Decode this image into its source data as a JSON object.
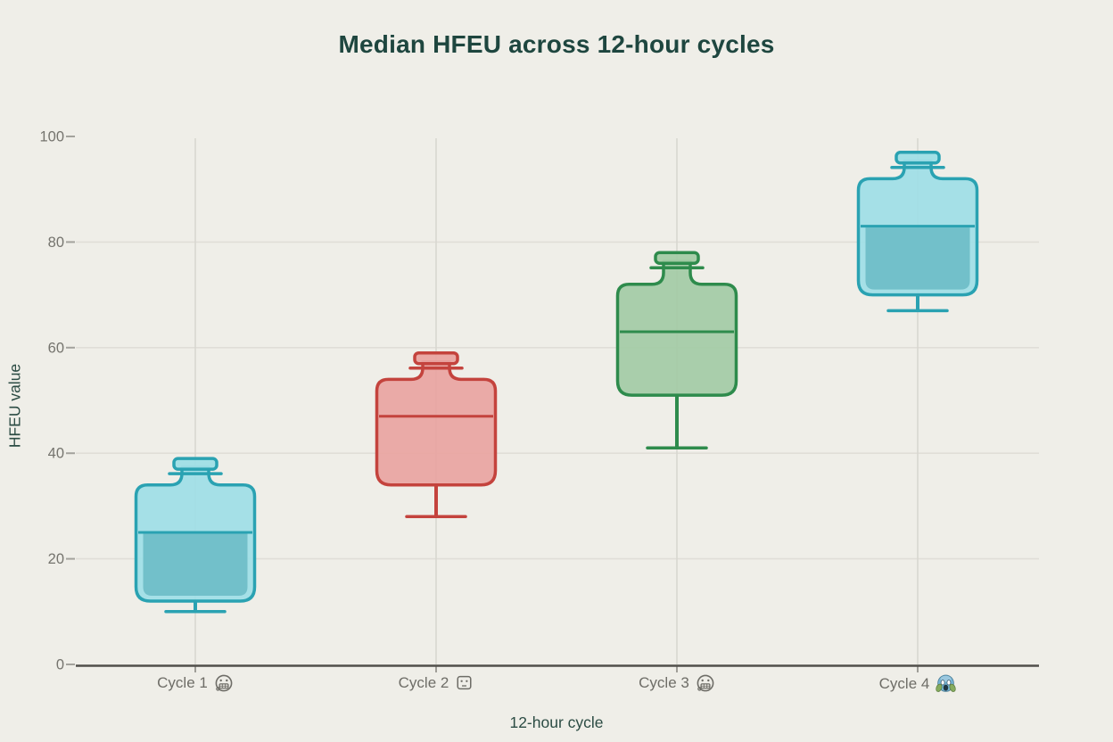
{
  "page": {
    "background": "#efeee8"
  },
  "chart_data": {
    "type": "boxplot",
    "title": "Median HFEU across 12-hour cycles",
    "xlabel": "12-hour cycle",
    "ylabel": "HFEU value",
    "ylim": [
      0,
      100
    ],
    "yticks": [
      0,
      20,
      40,
      60,
      80,
      100
    ],
    "grid": true,
    "legend": false,
    "categories": [
      {
        "label": "Cycle 1",
        "emoji": "😬",
        "icon": "face-grimace-icon"
      },
      {
        "label": "Cycle 2",
        "emoji": "🤖",
        "icon": "face-square-icon"
      },
      {
        "label": "Cycle 3",
        "emoji": "😬",
        "icon": "face-grimace-icon"
      },
      {
        "label": "Cycle 4",
        "emoji": "😱",
        "icon": "face-scream-icon"
      }
    ],
    "series": [
      {
        "name": "Cycle 1",
        "whisker_low": 10,
        "q1": 12,
        "median": 25,
        "q3": 34,
        "whisker_high": 39,
        "color_key": "teal"
      },
      {
        "name": "Cycle 2",
        "whisker_low": 28,
        "q1": 34,
        "median": 47,
        "q3": 54,
        "whisker_high": 59,
        "color_key": "red"
      },
      {
        "name": "Cycle 3",
        "whisker_low": 41,
        "q1": 51,
        "median": 63,
        "q3": 72,
        "whisker_high": 78,
        "color_key": "green"
      },
      {
        "name": "Cycle 4",
        "whisker_low": 67,
        "q1": 70,
        "median": 83,
        "q3": 92,
        "whisker_high": 97,
        "color_key": "teal"
      }
    ],
    "palette": {
      "teal": {
        "fill": "#9edee6",
        "liquid": "#6dbdc7",
        "stroke": "#2aa2b2"
      },
      "red": {
        "fill": "#e9a4a1",
        "stroke": "#c4433d"
      },
      "green": {
        "fill": "#a3cba5",
        "stroke": "#2e8b4c"
      }
    },
    "axis_color": "#504f4a",
    "tick_color": "#a3a29c",
    "grid_color_vertical": "#d8d7d0",
    "grid_color_horizontal": "#e0ded7",
    "tick_label_color": "#75746e",
    "category_label_color": "#6e6d67",
    "title_color": "#1e463f",
    "axis_label_color": "#2c4c44"
  }
}
